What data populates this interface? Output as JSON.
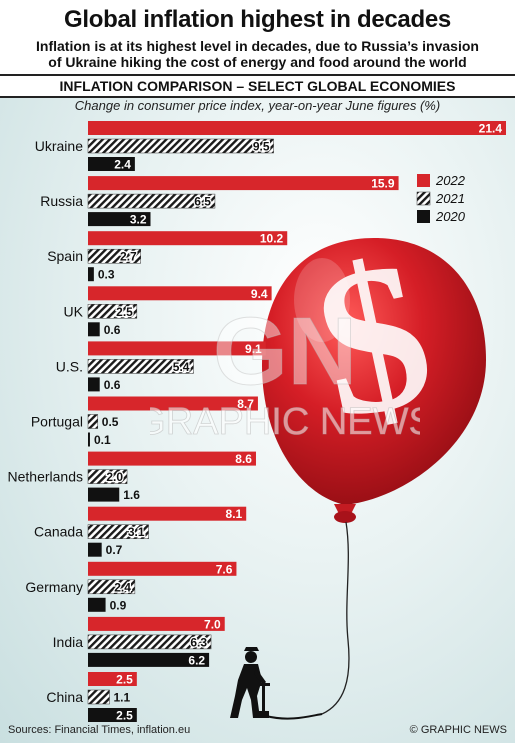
{
  "header": {
    "title": "Global inflation highest in decades",
    "subtitle_line1": "Inflation is at its highest level in decades, due to Russia’s invasion",
    "subtitle_line2": "of Ukraine hiking the cost of energy and food around the world",
    "section_title": "INFLATION COMPARISON – SELECT GLOBAL ECONOMIES",
    "unit_note": "Change in consumer price index, year-on-year June figures (%)"
  },
  "footer": {
    "source": "Sources: Financial Times, inflation.eu",
    "credit": "© GRAPHIC NEWS"
  },
  "watermark": {
    "monogram": "GN",
    "text": "GRAPHIC NEWS"
  },
  "colors": {
    "y2022": "#d7262b",
    "y2021": "hatched",
    "y2020": "#111111",
    "balloon": "#d51e26",
    "background": "#d6e8e9"
  },
  "icons": {
    "balloon": "dollar-balloon-icon",
    "figure": "man-with-pump-icon"
  },
  "chart_data": {
    "type": "bar",
    "orientation": "horizontal",
    "categories": [
      "Ukraine",
      "Russia",
      "Spain",
      "UK",
      "U.S.",
      "Portugal",
      "Netherlands",
      "Canada",
      "Germany",
      "India",
      "China"
    ],
    "series": [
      {
        "name": "2022",
        "values": [
          21.4,
          15.9,
          10.2,
          9.4,
          9.1,
          8.7,
          8.6,
          8.1,
          7.6,
          7.0,
          2.5
        ]
      },
      {
        "name": "2021",
        "values": [
          9.5,
          6.5,
          2.7,
          2.5,
          5.4,
          0.5,
          2.0,
          3.1,
          2.4,
          6.3,
          1.1
        ]
      },
      {
        "name": "2020",
        "values": [
          2.4,
          3.2,
          0.3,
          0.6,
          0.6,
          0.1,
          1.6,
          0.7,
          0.9,
          6.2,
          2.5
        ]
      }
    ],
    "value_labels": [
      [
        "21.4",
        "15.9",
        "10.2",
        "9.4",
        "9.1",
        "8.7",
        "8.6",
        "8.1",
        "7.6",
        "7.0",
        "2.5"
      ],
      [
        "9.5",
        "6.5",
        "2.7",
        "2.5",
        "5.4",
        "0.5",
        "2.0",
        "3.1",
        "2.4",
        "6.3",
        "1.1"
      ],
      [
        "2.4",
        "3.2",
        "0.3",
        "0.6",
        "0.6",
        "0.1",
        "1.6",
        "0.7",
        "0.9",
        "6.2",
        "2.5"
      ]
    ],
    "xlim": [
      0,
      21.4
    ],
    "legend_position": "right",
    "grid": false,
    "title": "Global inflation highest in decades",
    "xlabel": "",
    "ylabel": ""
  }
}
